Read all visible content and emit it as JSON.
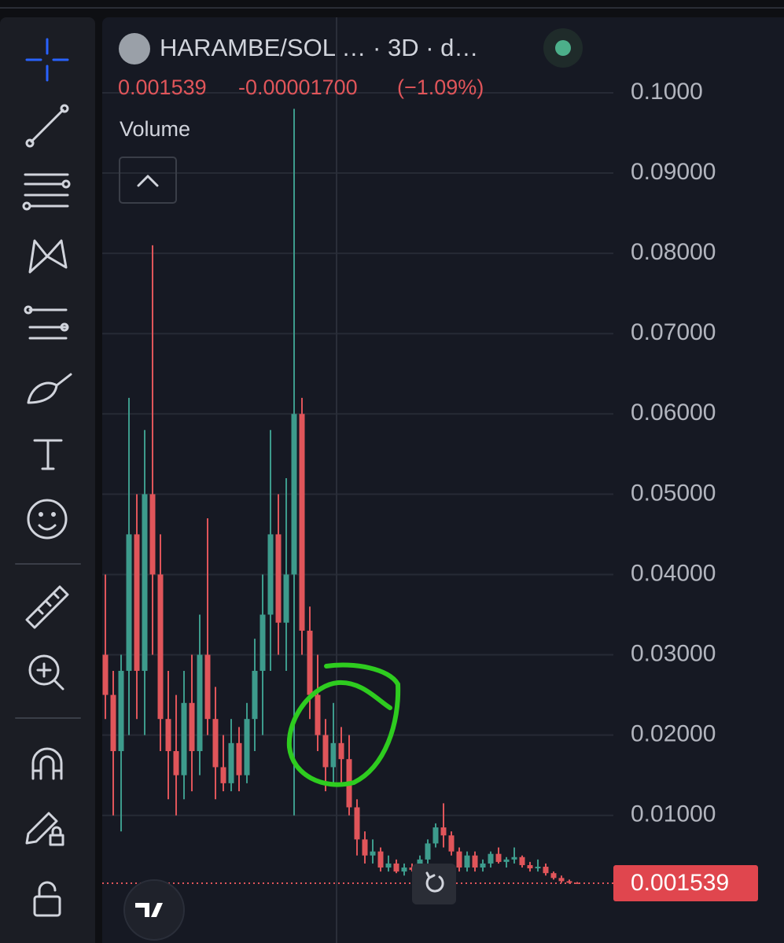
{
  "header": {
    "symbol": "HARAMBE/SOL … · 3D · d…",
    "price": "0.001539",
    "change": "-0.00001700",
    "change_percent": "(−1.09%)",
    "volume_label": "Volume"
  },
  "chart_data": {
    "type": "candlestick",
    "grid": true,
    "up_color": "#3d9b8c",
    "down_color": "#e0555a",
    "ylim": [
      -0.0059,
      0.1094
    ],
    "yticks": [
      {
        "value": 0.1,
        "label": "0.1000"
      },
      {
        "value": 0.09,
        "label": "0.09000"
      },
      {
        "value": 0.08,
        "label": "0.08000"
      },
      {
        "value": 0.07,
        "label": "0.07000"
      },
      {
        "value": 0.06,
        "label": "0.06000"
      },
      {
        "value": 0.05,
        "label": "0.05000"
      },
      {
        "value": 0.04,
        "label": "0.04000"
      },
      {
        "value": 0.03,
        "label": "0.03000"
      },
      {
        "value": 0.02,
        "label": "0.02000"
      },
      {
        "value": 0.01,
        "label": "0.01000"
      }
    ],
    "last_price": {
      "value": 0.001539,
      "label": "0.001539"
    },
    "candles": [
      [
        0.03,
        0.04,
        0.022,
        0.025
      ],
      [
        0.025,
        0.028,
        0.01,
        0.018
      ],
      [
        0.018,
        0.03,
        0.008,
        0.028
      ],
      [
        0.028,
        0.062,
        0.02,
        0.045
      ],
      [
        0.045,
        0.05,
        0.022,
        0.028
      ],
      [
        0.028,
        0.058,
        0.02,
        0.05
      ],
      [
        0.05,
        0.081,
        0.03,
        0.04
      ],
      [
        0.04,
        0.045,
        0.018,
        0.022
      ],
      [
        0.022,
        0.028,
        0.012,
        0.018
      ],
      [
        0.018,
        0.025,
        0.01,
        0.015
      ],
      [
        0.015,
        0.028,
        0.012,
        0.024
      ],
      [
        0.024,
        0.03,
        0.013,
        0.018
      ],
      [
        0.018,
        0.035,
        0.015,
        0.03
      ],
      [
        0.03,
        0.047,
        0.02,
        0.022
      ],
      [
        0.022,
        0.026,
        0.012,
        0.016
      ],
      [
        0.016,
        0.02,
        0.013,
        0.014
      ],
      [
        0.014,
        0.022,
        0.013,
        0.019
      ],
      [
        0.019,
        0.021,
        0.013,
        0.015
      ],
      [
        0.015,
        0.024,
        0.014,
        0.022
      ],
      [
        0.022,
        0.032,
        0.018,
        0.028
      ],
      [
        0.028,
        0.04,
        0.02,
        0.035
      ],
      [
        0.035,
        0.058,
        0.028,
        0.045
      ],
      [
        0.045,
        0.05,
        0.03,
        0.034
      ],
      [
        0.034,
        0.052,
        0.028,
        0.04
      ],
      [
        0.04,
        0.098,
        0.01,
        0.06
      ],
      [
        0.06,
        0.062,
        0.03,
        0.033
      ],
      [
        0.033,
        0.036,
        0.022,
        0.025
      ],
      [
        0.025,
        0.03,
        0.018,
        0.02
      ],
      [
        0.02,
        0.022,
        0.013,
        0.016
      ],
      [
        0.016,
        0.024,
        0.014,
        0.019
      ],
      [
        0.019,
        0.021,
        0.014,
        0.017
      ],
      [
        0.017,
        0.02,
        0.01,
        0.011
      ],
      [
        0.011,
        0.012,
        0.005,
        0.007
      ],
      [
        0.007,
        0.008,
        0.004,
        0.005
      ],
      [
        0.005,
        0.007,
        0.004,
        0.0055
      ],
      [
        0.0055,
        0.006,
        0.003,
        0.0035
      ],
      [
        0.0035,
        0.005,
        0.003,
        0.004
      ],
      [
        0.004,
        0.0045,
        0.0028,
        0.003
      ],
      [
        0.003,
        0.004,
        0.0025,
        0.0035
      ],
      [
        0.0035,
        0.004,
        0.003,
        0.0032
      ],
      [
        0.0032,
        0.005,
        0.003,
        0.0045
      ],
      [
        0.0045,
        0.007,
        0.004,
        0.0065
      ],
      [
        0.0065,
        0.009,
        0.006,
        0.0085
      ],
      [
        0.0085,
        0.0115,
        0.006,
        0.0075
      ],
      [
        0.0075,
        0.008,
        0.005,
        0.0055
      ],
      [
        0.0055,
        0.006,
        0.003,
        0.0035
      ],
      [
        0.0035,
        0.0055,
        0.003,
        0.005
      ],
      [
        0.005,
        0.0055,
        0.003,
        0.0035
      ],
      [
        0.0035,
        0.0045,
        0.003,
        0.004
      ],
      [
        0.004,
        0.0055,
        0.0035,
        0.0052
      ],
      [
        0.0052,
        0.006,
        0.004,
        0.0042
      ],
      [
        0.0042,
        0.0048,
        0.0035,
        0.0045
      ],
      [
        0.0045,
        0.006,
        0.004,
        0.0048
      ],
      [
        0.0048,
        0.005,
        0.0035,
        0.0038
      ],
      [
        0.0038,
        0.0042,
        0.003,
        0.0034
      ],
      [
        0.0034,
        0.0045,
        0.003,
        0.0036
      ],
      [
        0.0036,
        0.004,
        0.0025,
        0.0028
      ],
      [
        0.0028,
        0.003,
        0.002,
        0.0022
      ],
      [
        0.0022,
        0.0025,
        0.0016,
        0.0018
      ],
      [
        0.0018,
        0.002,
        0.0015,
        0.0016
      ],
      [
        0.0016,
        0.0017,
        0.0015,
        0.001539
      ]
    ]
  }
}
